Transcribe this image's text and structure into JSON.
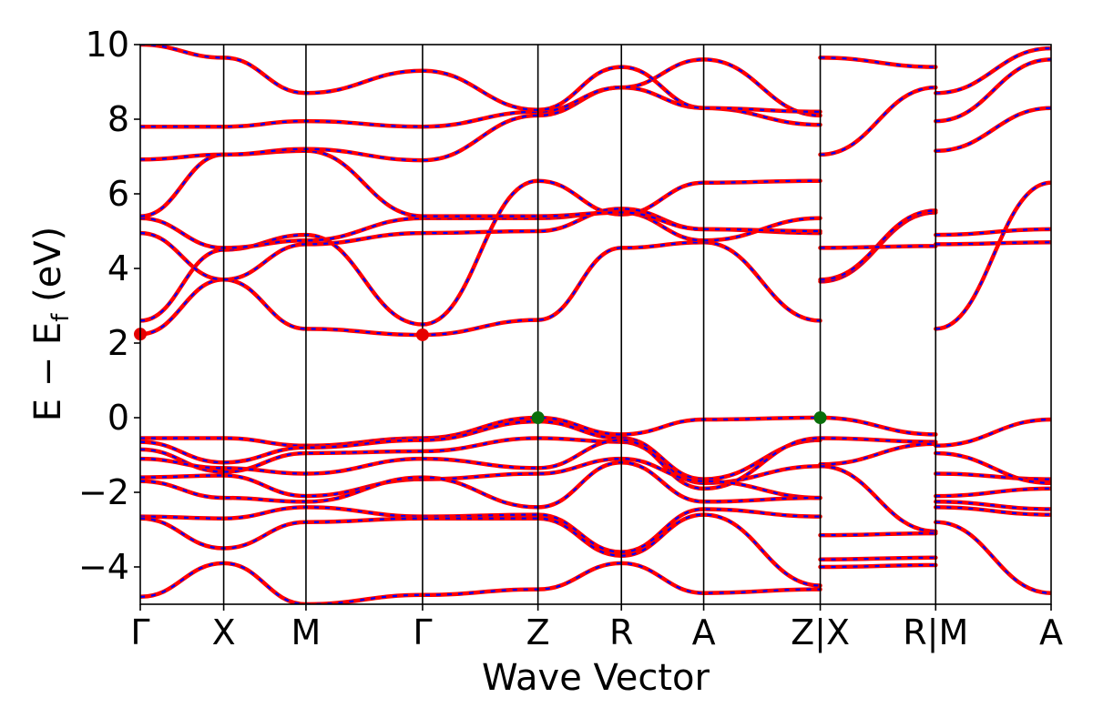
{
  "colors": {
    "band_primary": "#ff0000",
    "band_overlay": "#0000ff",
    "cbm_marker": "#e60000",
    "vbm_marker": "#0a6e0a",
    "axis": "#000000"
  },
  "chart_data": {
    "type": "line",
    "title": "",
    "xlabel": "Wave Vector",
    "ylabel": "E − E_f (eV)",
    "ylabel_parts": {
      "main": "E − E",
      "sub": "f",
      "tail": " (eV)"
    },
    "ylim": [
      -5,
      10
    ],
    "yticks": [
      -4,
      -2,
      0,
      2,
      4,
      6,
      8,
      10
    ],
    "ytick_labels": [
      "−4",
      "−2",
      "0",
      "2",
      "4",
      "6",
      "8",
      "10"
    ],
    "grid": false,
    "legend": "none",
    "kpath": [
      {
        "label": "Γ",
        "x": 0.0,
        "break_before": false
      },
      {
        "label": "X",
        "x": 0.73,
        "break_before": false
      },
      {
        "label": "M",
        "x": 1.45,
        "break_before": false
      },
      {
        "label": "Γ",
        "x": 2.47,
        "break_before": false
      },
      {
        "label": "Z",
        "x": 3.48,
        "break_before": false
      },
      {
        "label": "R",
        "x": 4.21,
        "break_before": false
      },
      {
        "label": "A",
        "x": 4.93,
        "break_before": false
      },
      {
        "label": "Z|X",
        "x": 5.95,
        "break_before": false
      },
      {
        "label": "R|M",
        "x": 6.96,
        "break_before": true
      },
      {
        "label": "A",
        "x": 7.97,
        "break_before": true
      }
    ],
    "xlim": [
      0.0,
      7.97
    ],
    "segments": [
      {
        "x0": 0.0,
        "x1": 5.95
      },
      {
        "x0": 5.95,
        "x1": 6.96
      },
      {
        "x0": 6.96,
        "x1": 7.97
      }
    ],
    "series": [
      {
        "segment": 0,
        "x": [
          0.0,
          0.73,
          1.45,
          2.47,
          3.48,
          4.21,
          4.93,
          5.95
        ],
        "values": [
          2.24,
          3.7,
          2.38,
          2.22,
          2.62,
          4.55,
          4.7,
          2.6
        ]
      },
      {
        "segment": 0,
        "x": [
          0.0,
          0.73,
          1.45,
          2.47,
          3.48,
          4.21,
          4.93,
          5.95
        ],
        "values": [
          2.6,
          4.5,
          4.9,
          2.5,
          6.35,
          5.45,
          6.3,
          6.35
        ]
      },
      {
        "segment": 0,
        "x": [
          0.0,
          0.73,
          1.45,
          2.47,
          3.48,
          4.21,
          4.93,
          5.95
        ],
        "values": [
          4.95,
          3.7,
          4.65,
          4.95,
          5.0,
          5.6,
          5.05,
          4.95
        ]
      },
      {
        "segment": 0,
        "x": [
          0.0,
          0.73,
          1.45,
          2.47,
          3.48,
          4.21,
          4.93,
          5.95
        ],
        "values": [
          5.35,
          4.55,
          4.75,
          5.35,
          5.35,
          5.5,
          4.75,
          5.35
        ]
      },
      {
        "segment": 0,
        "x": [
          0.0,
          0.73,
          1.45,
          2.47,
          3.48,
          4.21,
          4.93,
          5.95
        ],
        "values": [
          5.4,
          7.05,
          7.15,
          5.4,
          5.4,
          5.5,
          5.05,
          5.0
        ]
      },
      {
        "segment": 0,
        "x": [
          0.0,
          0.73,
          1.45,
          2.47,
          3.48,
          4.21,
          4.93,
          5.95
        ],
        "values": [
          6.92,
          7.05,
          7.2,
          6.9,
          8.1,
          8.85,
          8.3,
          7.85
        ]
      },
      {
        "segment": 0,
        "x": [
          0.0,
          0.73,
          1.45,
          2.47,
          3.48,
          4.21,
          4.93,
          5.95
        ],
        "values": [
          7.8,
          7.8,
          7.95,
          7.8,
          8.2,
          8.85,
          9.6,
          8.1
        ]
      },
      {
        "segment": 0,
        "x": [
          0.0,
          0.73,
          1.45,
          2.47,
          3.48,
          4.21,
          4.93,
          5.95
        ],
        "values": [
          10.0,
          9.65,
          8.7,
          9.3,
          8.25,
          9.4,
          8.3,
          8.2
        ]
      },
      {
        "segment": 0,
        "x": [
          0.0,
          0.73,
          1.45,
          2.47,
          3.48,
          4.21,
          4.93,
          5.95
        ],
        "values": [
          -0.55,
          -0.55,
          -0.75,
          -0.55,
          0.0,
          -0.45,
          -0.05,
          0.0
        ]
      },
      {
        "segment": 0,
        "x": [
          0.0,
          0.73,
          1.45,
          2.47,
          3.48,
          4.21,
          4.93,
          5.95
        ],
        "values": [
          -0.65,
          -1.2,
          -0.8,
          -0.6,
          -0.1,
          -0.55,
          -1.65,
          -0.6
        ]
      },
      {
        "segment": 0,
        "x": [
          0.0,
          0.73,
          1.45,
          2.47,
          3.48,
          4.21,
          4.93,
          5.95
        ],
        "values": [
          -0.85,
          -1.45,
          -0.95,
          -0.9,
          -0.55,
          -0.65,
          -1.75,
          -1.3
        ]
      },
      {
        "segment": 0,
        "x": [
          0.0,
          0.73,
          1.45,
          2.47,
          3.48,
          4.21,
          4.93,
          5.95
        ],
        "values": [
          -1.1,
          -1.35,
          -1.5,
          -1.1,
          -1.35,
          -0.6,
          -1.9,
          -0.55
        ]
      },
      {
        "segment": 0,
        "x": [
          0.0,
          0.73,
          1.45,
          2.47,
          3.48,
          4.21,
          4.93,
          5.95
        ],
        "values": [
          -1.6,
          -1.55,
          -2.1,
          -1.65,
          -1.5,
          -1.1,
          -1.7,
          -2.15
        ]
      },
      {
        "segment": 0,
        "x": [
          0.0,
          0.73,
          1.45,
          2.47,
          3.48,
          4.21,
          4.93,
          5.95
        ],
        "values": [
          -1.7,
          -2.15,
          -2.25,
          -1.6,
          -2.4,
          -1.2,
          -2.25,
          -2.15
        ]
      },
      {
        "segment": 0,
        "x": [
          0.0,
          0.73,
          1.45,
          2.47,
          3.48,
          4.21,
          4.93,
          5.95
        ],
        "values": [
          -2.65,
          -2.7,
          -2.4,
          -2.65,
          -2.6,
          -3.6,
          -2.45,
          -2.65
        ]
      },
      {
        "segment": 0,
        "x": [
          0.0,
          0.73,
          1.45,
          2.47,
          3.48,
          4.21,
          4.93,
          5.95
        ],
        "values": [
          -2.7,
          -3.5,
          -2.8,
          -2.7,
          -2.7,
          -3.7,
          -2.6,
          -4.5
        ]
      },
      {
        "segment": 0,
        "x": [
          0.0,
          0.73,
          1.45,
          2.47,
          3.48,
          4.21,
          4.93,
          5.95
        ],
        "values": [
          -4.8,
          -3.9,
          -5.0,
          -4.75,
          -4.6,
          -3.9,
          -4.7,
          -4.6
        ]
      },
      {
        "segment": 1,
        "x": [
          5.95,
          6.96
        ],
        "values": [
          3.65,
          5.5
        ]
      },
      {
        "segment": 1,
        "x": [
          5.95,
          6.96
        ],
        "values": [
          3.7,
          5.55
        ]
      },
      {
        "segment": 1,
        "x": [
          5.95,
          6.96
        ],
        "values": [
          4.55,
          4.6
        ]
      },
      {
        "segment": 1,
        "x": [
          5.95,
          6.96
        ],
        "values": [
          7.05,
          8.85
        ]
      },
      {
        "segment": 1,
        "x": [
          5.95,
          6.96
        ],
        "values": [
          9.65,
          9.4
        ]
      },
      {
        "segment": 1,
        "x": [
          5.95,
          6.96
        ],
        "values": [
          0.0,
          -0.45
        ]
      },
      {
        "segment": 1,
        "x": [
          5.95,
          6.96
        ],
        "values": [
          -0.55,
          -0.65
        ]
      },
      {
        "segment": 1,
        "x": [
          5.95,
          6.96
        ],
        "values": [
          -1.25,
          -0.7
        ]
      },
      {
        "segment": 1,
        "x": [
          5.95,
          6.96
        ],
        "values": [
          -1.3,
          -3.05
        ]
      },
      {
        "segment": 1,
        "x": [
          5.95,
          6.96
        ],
        "values": [
          -3.15,
          -3.1
        ]
      },
      {
        "segment": 1,
        "x": [
          5.95,
          6.96
        ],
        "values": [
          -3.8,
          -3.75
        ]
      },
      {
        "segment": 1,
        "x": [
          5.95,
          6.96
        ],
        "values": [
          -4.0,
          -3.95
        ]
      },
      {
        "segment": 2,
        "x": [
          6.96,
          7.97
        ],
        "values": [
          2.38,
          6.3
        ]
      },
      {
        "segment": 2,
        "x": [
          6.96,
          7.97
        ],
        "values": [
          4.65,
          4.7
        ]
      },
      {
        "segment": 2,
        "x": [
          6.96,
          7.97
        ],
        "values": [
          4.9,
          5.05
        ]
      },
      {
        "segment": 2,
        "x": [
          6.96,
          7.97
        ],
        "values": [
          7.15,
          8.3
        ]
      },
      {
        "segment": 2,
        "x": [
          6.96,
          7.97
        ],
        "values": [
          7.95,
          9.6
        ]
      },
      {
        "segment": 2,
        "x": [
          6.96,
          7.97
        ],
        "values": [
          8.7,
          9.9
        ]
      },
      {
        "segment": 2,
        "x": [
          6.96,
          7.97
        ],
        "values": [
          -0.75,
          -0.05
        ]
      },
      {
        "segment": 2,
        "x": [
          6.96,
          7.97
        ],
        "values": [
          -1.5,
          -1.65
        ]
      },
      {
        "segment": 2,
        "x": [
          6.96,
          7.97
        ],
        "values": [
          -0.95,
          -1.75
        ]
      },
      {
        "segment": 2,
        "x": [
          6.96,
          7.97
        ],
        "values": [
          -2.1,
          -1.9
        ]
      },
      {
        "segment": 2,
        "x": [
          6.96,
          7.97
        ],
        "values": [
          -2.25,
          -2.45
        ]
      },
      {
        "segment": 2,
        "x": [
          6.96,
          7.97
        ],
        "values": [
          -2.4,
          -2.6
        ]
      },
      {
        "segment": 2,
        "x": [
          6.96,
          7.97
        ],
        "values": [
          -2.8,
          -4.7
        ]
      }
    ],
    "markers": [
      {
        "kind": "cbm",
        "x": 0.0,
        "y": 2.24
      },
      {
        "kind": "cbm",
        "x": 2.47,
        "y": 2.22
      },
      {
        "kind": "vbm",
        "x": 3.48,
        "y": 0.0
      },
      {
        "kind": "vbm",
        "x": 5.95,
        "y": 0.0
      }
    ]
  }
}
